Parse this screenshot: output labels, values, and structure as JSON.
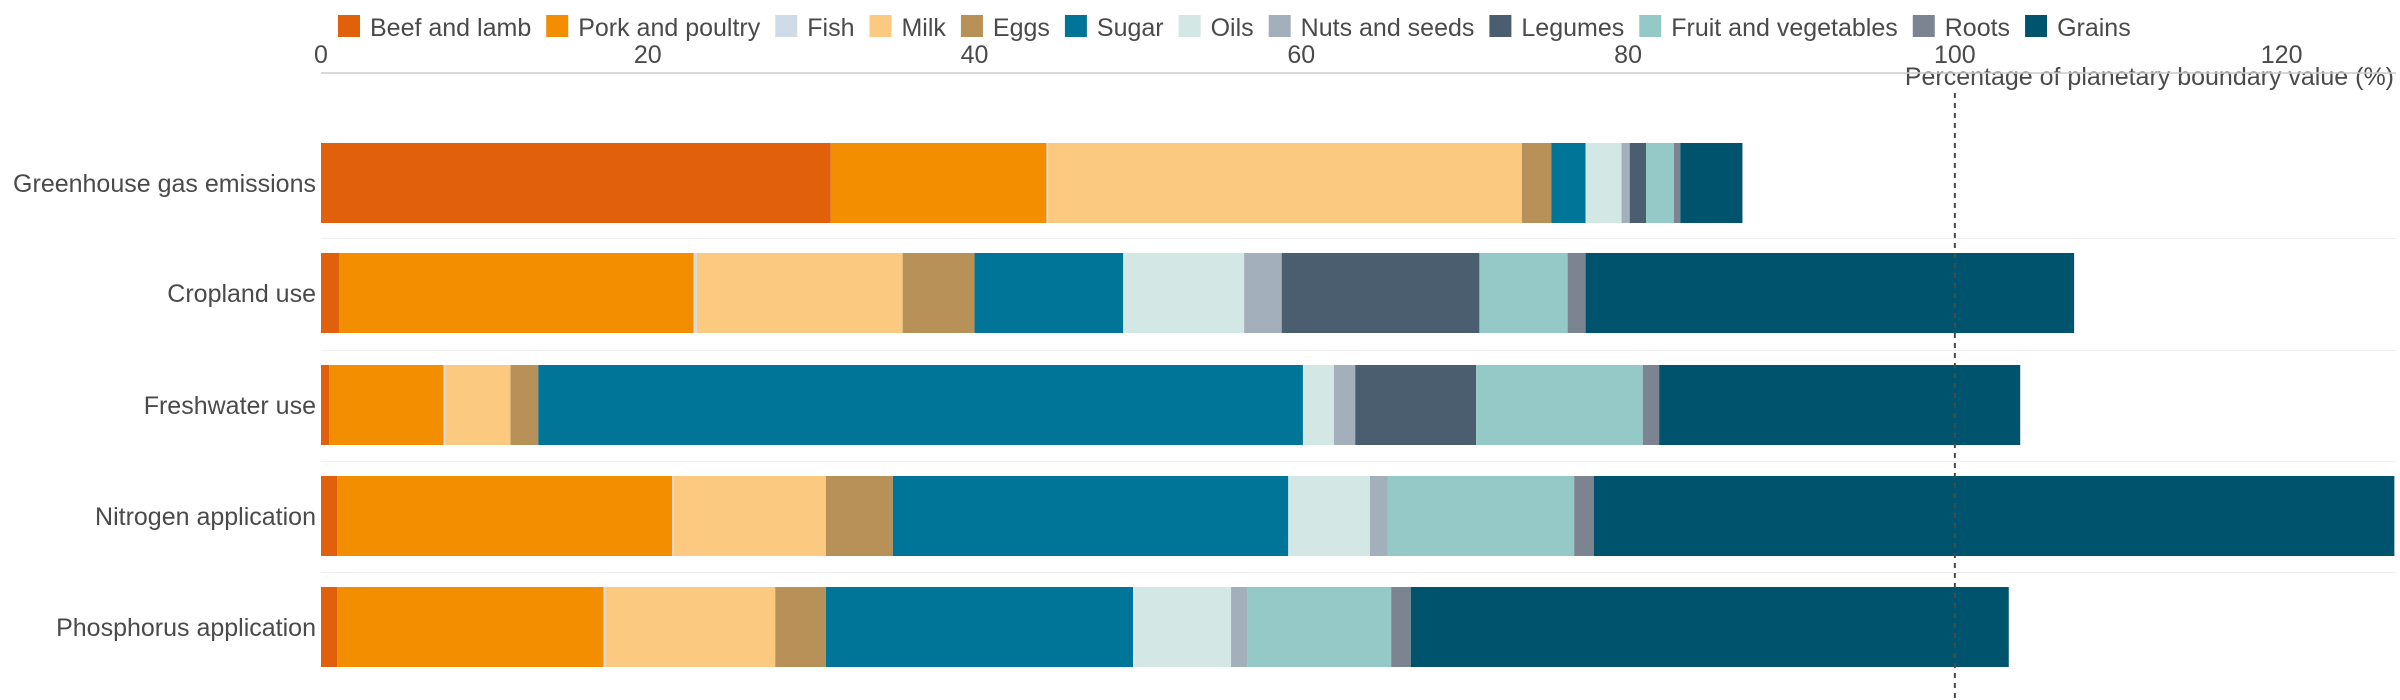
{
  "chart_data": {
    "type": "bar",
    "orientation": "horizontal",
    "stacked": true,
    "title": "",
    "xlabel": "Percentage of planetary boundary value (%)",
    "xlim": [
      0,
      127
    ],
    "xticks": [
      0,
      20,
      40,
      60,
      80,
      100,
      120
    ],
    "reference_line": {
      "x": 100,
      "style": "dashed"
    },
    "grid": false,
    "legend_position": "top",
    "categories": [
      "Greenhouse gas emissions",
      "Cropland use",
      "Freshwater use",
      "Nitrogen application",
      "Phosphorus application"
    ],
    "series": [
      {
        "name": "Beef and lamb",
        "color": "#e0600c",
        "values": [
          31.2,
          1.1,
          0.5,
          1.0,
          1.0
        ]
      },
      {
        "name": "Pork and poultry",
        "color": "#f28e00",
        "values": [
          13.2,
          21.7,
          7.0,
          20.5,
          16.3
        ]
      },
      {
        "name": "Fish",
        "color": "#cfdbe6",
        "values": [
          0.1,
          0.2,
          0.1,
          0.1,
          0.1
        ]
      },
      {
        "name": "Milk",
        "color": "#fbc97f",
        "values": [
          29.0,
          12.6,
          4.0,
          9.3,
          10.4
        ]
      },
      {
        "name": "Eggs",
        "color": "#b89159",
        "values": [
          1.8,
          4.4,
          1.7,
          4.1,
          3.1
        ]
      },
      {
        "name": "Sugar",
        "color": "#007597",
        "values": [
          2.1,
          9.1,
          46.8,
          24.2,
          18.8
        ]
      },
      {
        "name": "Oils",
        "color": "#d3e7e5",
        "values": [
          2.2,
          7.4,
          1.9,
          5.0,
          6.0
        ]
      },
      {
        "name": "Nuts and seeds",
        "color": "#a3afba",
        "values": [
          0.5,
          2.3,
          1.3,
          1.1,
          1.0
        ]
      },
      {
        "name": "Legumes",
        "color": "#4a5e70",
        "values": [
          1.0,
          12.1,
          7.4,
          0.0,
          0.0
        ]
      },
      {
        "name": "Fruit and vegetables",
        "color": "#95c9c7",
        "values": [
          1.7,
          5.4,
          10.2,
          11.4,
          8.8
        ]
      },
      {
        "name": "Roots",
        "color": "#7b8490",
        "values": [
          0.4,
          1.1,
          1.0,
          1.2,
          1.2
        ]
      },
      {
        "name": "Grains",
        "color": "#00536d",
        "values": [
          3.8,
          29.9,
          22.1,
          49.0,
          36.6
        ]
      }
    ]
  }
}
